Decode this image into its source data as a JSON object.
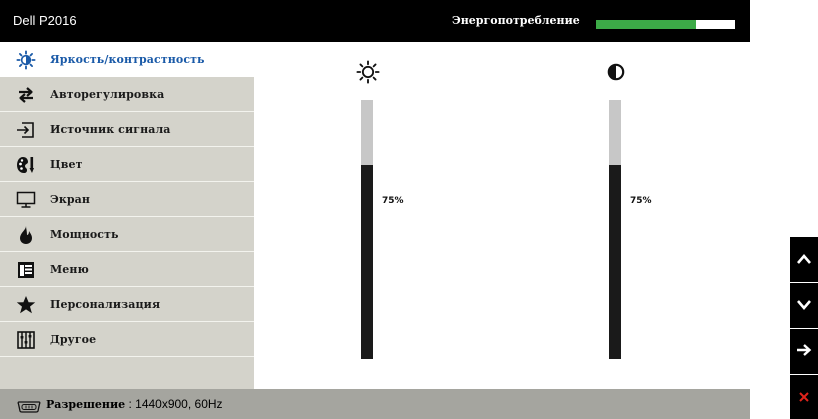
{
  "header": {
    "title": "Dell P2016",
    "power_label": "Энергопотребление",
    "power_level": 0.72,
    "power_color": "#3cab47"
  },
  "sidebar": {
    "items": [
      {
        "label": "Яркость/контрастность",
        "icon": "brightness-icon",
        "active": true
      },
      {
        "label": "Авторегулировка",
        "icon": "auto-adjust-icon"
      },
      {
        "label": "Источник сигнала",
        "icon": "input-source-icon"
      },
      {
        "label": "Цвет",
        "icon": "color-icon"
      },
      {
        "label": "Экран",
        "icon": "display-icon"
      },
      {
        "label": "Мощность",
        "icon": "power-icon"
      },
      {
        "label": "Меню",
        "icon": "menu-icon"
      },
      {
        "label": "Персонализация",
        "icon": "star-icon"
      },
      {
        "label": "Другое",
        "icon": "other-icon"
      }
    ],
    "active_color": "#1a5aa8"
  },
  "sliders": {
    "brightness": {
      "icon": "sun-icon",
      "value_text": "75%",
      "value": 75
    },
    "contrast": {
      "icon": "contrast-icon",
      "value_text": "75%",
      "value": 75
    }
  },
  "footer": {
    "icon": "resolution-icon",
    "label": "Разрешение",
    "value": " : 1440x900, 60Hz"
  },
  "nav": {
    "up": "chevron-up-icon",
    "down": "chevron-down-icon",
    "enter": "arrow-right-icon",
    "exit": "close-icon",
    "exit_color": "#e0241b"
  }
}
